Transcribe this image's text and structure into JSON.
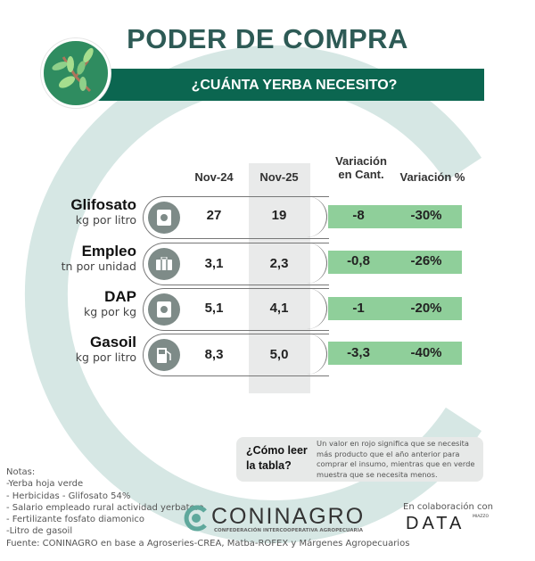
{
  "header": {
    "title": "PODER DE COMPRA",
    "subtitle": "¿CUÁNTA YERBA NECESITO?"
  },
  "table": {
    "columns": [
      "Nov-24",
      "Nov-25",
      "Variación en Cant.",
      "Variación %"
    ],
    "col_var_line1": "Variación",
    "col_var_line2": "en Cant.",
    "rows": [
      {
        "name": "Glifosato",
        "unit": "kg por litro",
        "icon": "herbicide-bag-icon",
        "nov24": "27",
        "nov25": "19",
        "var_cant": "-8",
        "var_pct": "-30%"
      },
      {
        "name": "Empleo",
        "unit": "tn por unidad",
        "icon": "briefcase-icon",
        "nov24": "3,1",
        "nov25": "2,3",
        "var_cant": "-0,8",
        "var_pct": "-26%"
      },
      {
        "name": "DAP",
        "unit": "kg por kg",
        "icon": "fertilizer-bag-icon",
        "nov24": "5,1",
        "nov25": "4,1",
        "var_cant": "-1",
        "var_pct": "-20%"
      },
      {
        "name": "Gasoil",
        "unit": "kg por litro",
        "icon": "fuel-pump-icon",
        "nov24": "8,3",
        "nov25": "5,0",
        "var_cant": "-3,3",
        "var_pct": "-40%"
      }
    ],
    "colors": {
      "decrease": "#8fcf9a",
      "accent": "#0b6650"
    }
  },
  "legend": {
    "question": "¿Cómo leer la tabla?",
    "text": "Un valor en rojo significa que se necesita más producto que el año anterior para comprar el insumo, mientras que en verde muestra que se necesita menos."
  },
  "notes": {
    "title": "Notas:",
    "items": [
      "-Yerba hoja verde",
      "- Herbicidas - Glifosato 54%",
      "- Salario empleado rural actividad yerbatera",
      "- Fertilizante fosfato diamonico",
      "-Litro de gasoil"
    ],
    "source": "Fuente: CONINAGRO en base a Agroseries-CREA, Matba-ROFEX y Márgenes Agropecuarios"
  },
  "footer": {
    "logo": "CONINAGRO",
    "logo_sub": "Confederación Intercooperativa Agropecuaria",
    "collab": "En colaboración con",
    "partner": "DATA",
    "partner_sub": "MIAZZO"
  }
}
